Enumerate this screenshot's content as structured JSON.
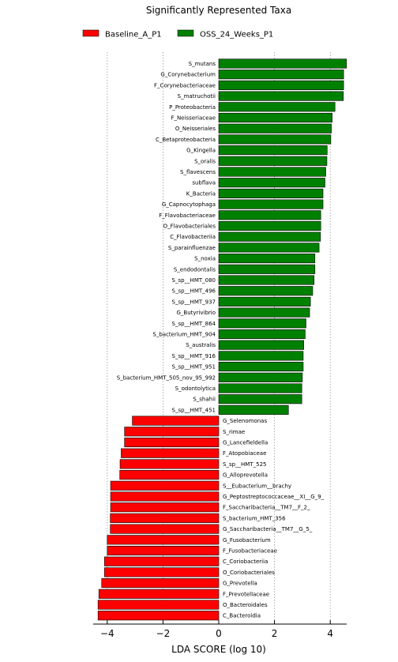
{
  "chart_data": {
    "type": "bar",
    "orientation": "horizontal",
    "title": "Significantly Represented Taxa",
    "xlabel": "LDA SCORE (log 10)",
    "xlim": [
      -4.5,
      4.6
    ],
    "xticks": [
      -4,
      -2,
      0,
      2,
      4
    ],
    "xtick_labels": [
      "−4",
      "−2",
      "0",
      "2",
      "4"
    ],
    "grid": "vertical dotted",
    "legend_position": "top",
    "series": [
      {
        "name": "Baseline_A_P1",
        "color": "#ff0000"
      },
      {
        "name": "OSS_24_Weeks_P1",
        "color": "#008000"
      }
    ],
    "categories": [
      "S_mutans",
      "G_Corynebacterium",
      "F_Corynebacteriaceae",
      "S_matruchotii",
      "P_Proteobacteria",
      "F_Neisseriaceae",
      "O_Neisseriales",
      "C_Betaproteobacteria",
      "G_Kingella",
      "S_oralis",
      "S_flavescens",
      "subflava",
      "K_Bacteria",
      "G_Capnocytophaga",
      "F_Flavobacteriaceae",
      "O_Flavobacteriales",
      "C_Flavobacteriia",
      "S_parainfluenzae",
      "S_noxia",
      "S_endodontalis",
      "S_sp__HMT_080",
      "S_sp__HMT_496",
      "S_sp__HMT_937",
      "G_Butyrivibrio",
      "S_sp__HMT_864",
      "S_bacterium_HMT_904",
      "S_australis",
      "S_sp__HMT_916",
      "S_sp__HMT_951",
      "S_bacterium_HMT_505_nov_95_992",
      "S_odontolytica",
      "S_shahii",
      "S_sp__HMT_451",
      "G_Selenomonas",
      "S_rimae",
      "G_Lancefieldella",
      "F_Atopobiaceae",
      "S_sp__HMT_525",
      "G_Alloprevotella",
      "S__Eubacterium__brachy",
      "G_Peptostreptococcaceae__XI__G_9_",
      "F_Saccharibacteria__TM7__F_2_",
      "S_bacterium_HMT_356",
      "G_Saccharibacteria__TM7__G_5_",
      "G_Fusobacterium",
      "F_Fusobacteriaceae",
      "C_Coriobacteriia",
      "O_Coriobacteriales",
      "G_Prevotella",
      "F_Prevotellaceae",
      "O_Bacteroidales",
      "C_Bacteroidia"
    ],
    "values": [
      4.58,
      4.48,
      4.48,
      4.47,
      4.17,
      4.07,
      4.04,
      4.02,
      3.89,
      3.88,
      3.84,
      3.81,
      3.74,
      3.74,
      3.66,
      3.66,
      3.65,
      3.6,
      3.45,
      3.45,
      3.42,
      3.37,
      3.29,
      3.26,
      3.13,
      3.1,
      3.05,
      3.03,
      3.03,
      3.0,
      2.98,
      2.98,
      2.5,
      -3.1,
      -3.38,
      -3.38,
      -3.5,
      -3.54,
      -3.55,
      -3.88,
      -3.88,
      -3.88,
      -3.89,
      -3.89,
      -4.0,
      -4.0,
      -4.1,
      -4.1,
      -4.2,
      -4.3,
      -4.33,
      -4.33
    ]
  }
}
